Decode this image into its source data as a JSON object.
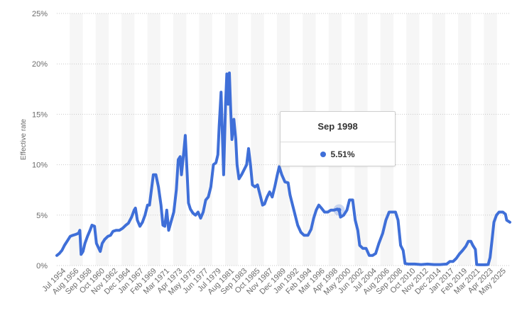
{
  "chart_data": {
    "type": "line",
    "title": "",
    "xlabel": "",
    "ylabel": "Effective rate",
    "ylim": [
      0,
      25
    ],
    "y_ticks": [
      "0%",
      "5%",
      "10%",
      "15%",
      "20%",
      "25%"
    ],
    "grid": true,
    "x_tick_labels": [
      "Jul 1954",
      "Aug 1956",
      "Sep 1958",
      "Oct 1960",
      "Nov 1962",
      "Dec 1964",
      "Jan 1967",
      "Feb 1969",
      "Mar 1971",
      "Apr 1973",
      "May 1975",
      "Jun 1977",
      "Jul 1979",
      "Aug 1981",
      "Sep 1983",
      "Oct 1985",
      "Nov 1987",
      "Dec 1989",
      "Jan 1992",
      "Feb 1994",
      "Mar 1996",
      "Apr 1998",
      "May 2000",
      "Jun 2002",
      "Jul 2004",
      "Aug 2006",
      "Sep 2008",
      "Oct 2010",
      "Nov 2012",
      "Dec 2014",
      "Jan 2017",
      "Feb 2019",
      "Mar 2021",
      "Apr 2023",
      "May 2025"
    ],
    "x_start": 1954.5,
    "x_end": 2025.4,
    "series": [
      {
        "color": "#3f6fd8",
        "points": [
          [
            1954.5,
            1.0
          ],
          [
            1954.9,
            1.2
          ],
          [
            1955.3,
            1.5
          ],
          [
            1955.7,
            2.0
          ],
          [
            1956.2,
            2.5
          ],
          [
            1956.6,
            2.9
          ],
          [
            1957.0,
            3.0
          ],
          [
            1957.5,
            3.1
          ],
          [
            1957.9,
            3.2
          ],
          [
            1958.1,
            3.5
          ],
          [
            1958.3,
            1.1
          ],
          [
            1958.6,
            1.4
          ],
          [
            1958.9,
            2.2
          ],
          [
            1959.3,
            2.9
          ],
          [
            1959.7,
            3.5
          ],
          [
            1960.0,
            4.0
          ],
          [
            1960.4,
            3.9
          ],
          [
            1960.7,
            2.2
          ],
          [
            1961.0,
            1.8
          ],
          [
            1961.3,
            1.4
          ],
          [
            1961.6,
            2.2
          ],
          [
            1962.0,
            2.6
          ],
          [
            1962.5,
            2.9
          ],
          [
            1962.9,
            3.0
          ],
          [
            1963.3,
            3.4
          ],
          [
            1963.8,
            3.5
          ],
          [
            1964.3,
            3.5
          ],
          [
            1964.8,
            3.7
          ],
          [
            1965.3,
            4.0
          ],
          [
            1965.7,
            4.2
          ],
          [
            1966.2,
            4.8
          ],
          [
            1966.6,
            5.5
          ],
          [
            1966.8,
            5.7
          ],
          [
            1967.1,
            4.5
          ],
          [
            1967.5,
            3.9
          ],
          [
            1967.9,
            4.3
          ],
          [
            1968.3,
            5.0
          ],
          [
            1968.7,
            6.0
          ],
          [
            1969.0,
            6.0
          ],
          [
            1969.3,
            7.5
          ],
          [
            1969.6,
            9.0
          ],
          [
            1970.0,
            9.0
          ],
          [
            1970.4,
            7.8
          ],
          [
            1970.8,
            6.0
          ],
          [
            1971.1,
            4.0
          ],
          [
            1971.4,
            3.9
          ],
          [
            1971.7,
            5.5
          ],
          [
            1972.0,
            3.5
          ],
          [
            1972.4,
            4.4
          ],
          [
            1972.8,
            5.3
          ],
          [
            1973.2,
            7.5
          ],
          [
            1973.5,
            10.5
          ],
          [
            1973.8,
            10.8
          ],
          [
            1974.0,
            9.0
          ],
          [
            1974.4,
            11.5
          ],
          [
            1974.6,
            12.9
          ],
          [
            1974.9,
            9.0
          ],
          [
            1975.1,
            6.2
          ],
          [
            1975.4,
            5.6
          ],
          [
            1975.8,
            5.2
          ],
          [
            1976.2,
            5.0
          ],
          [
            1976.6,
            5.3
          ],
          [
            1977.0,
            4.7
          ],
          [
            1977.4,
            5.3
          ],
          [
            1977.8,
            6.5
          ],
          [
            1978.2,
            6.8
          ],
          [
            1978.6,
            7.8
          ],
          [
            1979.0,
            10.0
          ],
          [
            1979.4,
            10.2
          ],
          [
            1979.7,
            11.0
          ],
          [
            1979.9,
            13.8
          ],
          [
            1980.2,
            17.2
          ],
          [
            1980.4,
            13.0
          ],
          [
            1980.6,
            9.0
          ],
          [
            1980.9,
            16.0
          ],
          [
            1981.1,
            19.0
          ],
          [
            1981.3,
            16.0
          ],
          [
            1981.5,
            19.1
          ],
          [
            1981.7,
            15.5
          ],
          [
            1981.9,
            12.5
          ],
          [
            1982.2,
            14.5
          ],
          [
            1982.5,
            12.5
          ],
          [
            1982.7,
            10.0
          ],
          [
            1983.0,
            8.6
          ],
          [
            1983.4,
            9.0
          ],
          [
            1983.8,
            9.5
          ],
          [
            1984.2,
            10.0
          ],
          [
            1984.5,
            11.6
          ],
          [
            1984.8,
            10.0
          ],
          [
            1985.1,
            8.0
          ],
          [
            1985.5,
            7.8
          ],
          [
            1985.9,
            8.0
          ],
          [
            1986.3,
            7.0
          ],
          [
            1986.7,
            6.0
          ],
          [
            1987.0,
            6.1
          ],
          [
            1987.4,
            6.8
          ],
          [
            1987.8,
            7.3
          ],
          [
            1988.2,
            6.8
          ],
          [
            1988.6,
            7.8
          ],
          [
            1989.0,
            9.0
          ],
          [
            1989.3,
            9.8
          ],
          [
            1989.7,
            9.0
          ],
          [
            1990.2,
            8.3
          ],
          [
            1990.7,
            8.2
          ],
          [
            1991.0,
            7.0
          ],
          [
            1991.4,
            6.0
          ],
          [
            1991.8,
            5.0
          ],
          [
            1992.2,
            4.0
          ],
          [
            1992.7,
            3.3
          ],
          [
            1993.2,
            3.0
          ],
          [
            1993.8,
            3.0
          ],
          [
            1994.3,
            3.6
          ],
          [
            1994.7,
            4.7
          ],
          [
            1995.1,
            5.5
          ],
          [
            1995.5,
            6.0
          ],
          [
            1995.9,
            5.7
          ],
          [
            1996.4,
            5.3
          ],
          [
            1996.9,
            5.3
          ],
          [
            1997.4,
            5.5
          ],
          [
            1997.9,
            5.5
          ],
          [
            1998.4,
            5.6
          ],
          [
            1998.67,
            5.51
          ],
          [
            1998.9,
            4.8
          ],
          [
            1999.4,
            5.0
          ],
          [
            1999.9,
            5.5
          ],
          [
            2000.3,
            6.5
          ],
          [
            2000.8,
            6.5
          ],
          [
            2001.2,
            4.5
          ],
          [
            2001.6,
            3.5
          ],
          [
            2001.9,
            2.0
          ],
          [
            2002.4,
            1.7
          ],
          [
            2002.9,
            1.7
          ],
          [
            2003.4,
            1.0
          ],
          [
            2003.9,
            1.0
          ],
          [
            2004.4,
            1.2
          ],
          [
            2004.9,
            2.2
          ],
          [
            2005.5,
            3.2
          ],
          [
            2006.0,
            4.5
          ],
          [
            2006.5,
            5.3
          ],
          [
            2007.0,
            5.3
          ],
          [
            2007.5,
            5.3
          ],
          [
            2007.9,
            4.5
          ],
          [
            2008.3,
            2.0
          ],
          [
            2008.7,
            1.5
          ],
          [
            2009.0,
            0.2
          ],
          [
            2009.5,
            0.15
          ],
          [
            2010.5,
            0.15
          ],
          [
            2011.5,
            0.1
          ],
          [
            2012.5,
            0.15
          ],
          [
            2013.5,
            0.1
          ],
          [
            2014.5,
            0.1
          ],
          [
            2015.5,
            0.15
          ],
          [
            2016.0,
            0.4
          ],
          [
            2016.5,
            0.4
          ],
          [
            2017.0,
            0.7
          ],
          [
            2017.5,
            1.15
          ],
          [
            2018.0,
            1.5
          ],
          [
            2018.5,
            1.9
          ],
          [
            2018.9,
            2.4
          ],
          [
            2019.3,
            2.4
          ],
          [
            2019.6,
            2.0
          ],
          [
            2020.0,
            1.6
          ],
          [
            2020.2,
            0.1
          ],
          [
            2020.7,
            0.08
          ],
          [
            2021.5,
            0.08
          ],
          [
            2022.0,
            0.1
          ],
          [
            2022.3,
            0.8
          ],
          [
            2022.6,
            2.5
          ],
          [
            2022.9,
            4.3
          ],
          [
            2023.3,
            5.0
          ],
          [
            2023.7,
            5.3
          ],
          [
            2024.3,
            5.3
          ],
          [
            2024.7,
            5.1
          ],
          [
            2024.9,
            4.5
          ],
          [
            2025.4,
            4.3
          ]
        ]
      }
    ],
    "tooltip": {
      "title": "Sep 1998",
      "value_label": "5.51%",
      "x": 1998.67,
      "y": 5.51
    }
  }
}
